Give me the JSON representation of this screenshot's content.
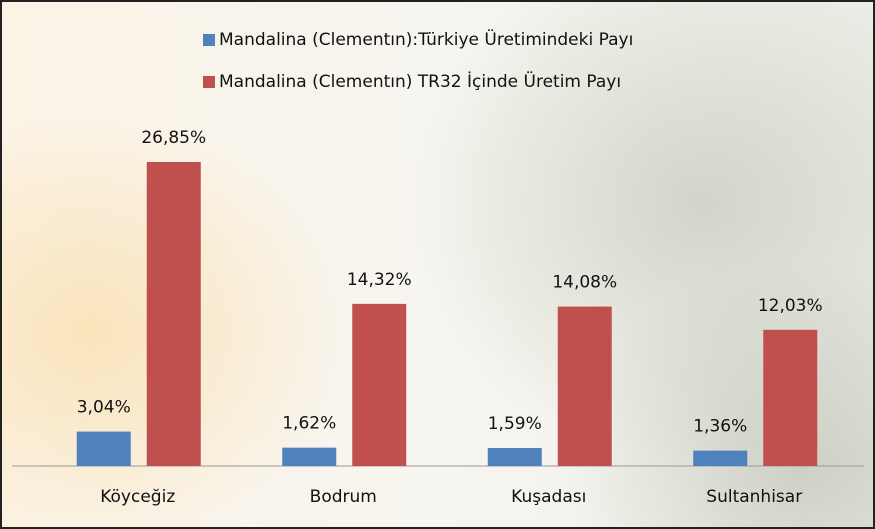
{
  "chart_data": {
    "type": "bar",
    "categories": [
      "Köyceğiz",
      "Bodrum",
      "Kuşadası",
      "Sultanhisar"
    ],
    "series": [
      {
        "name": "Mandalina (Clementın):Türkiye Üretimindeki Payı",
        "color": "#4f81bd",
        "values": [
          3.04,
          1.62,
          1.59,
          1.36
        ],
        "value_labels": [
          "3,04%",
          "1,62%",
          "1,59%",
          "1,36%"
        ]
      },
      {
        "name": "Mandalina (Clementın) TR32 İçinde Üretim Payı",
        "color": "#c0504d",
        "values": [
          26.85,
          14.32,
          14.08,
          12.03
        ],
        "value_labels": [
          "26,85%",
          "14,32%",
          "14,08%",
          "12,03%"
        ]
      }
    ]
  }
}
